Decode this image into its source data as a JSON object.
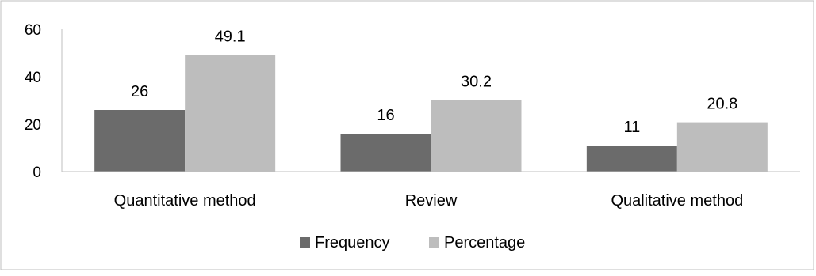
{
  "chart_data": {
    "type": "bar",
    "categories": [
      "Quantitative method",
      "Review",
      "Qualitative method"
    ],
    "series": [
      {
        "name": "Frequency",
        "values": [
          26,
          16,
          11
        ],
        "color": "#6b6b6b"
      },
      {
        "name": "Percentage",
        "values": [
          49.1,
          30.2,
          20.8
        ],
        "color": "#bdbdbd"
      }
    ],
    "value_labels": [
      [
        "26",
        "16",
        "11"
      ],
      [
        "49.1",
        "30.2",
        "20.8"
      ]
    ],
    "yticks": [
      "0",
      "20",
      "40",
      "60"
    ],
    "ylim": [
      0,
      60
    ],
    "grid": false,
    "legend": "bottom",
    "title": "",
    "xlabel": "",
    "ylabel": ""
  },
  "colors": {
    "axis": "#bfbfbf",
    "frame": "#bfbfbf"
  }
}
